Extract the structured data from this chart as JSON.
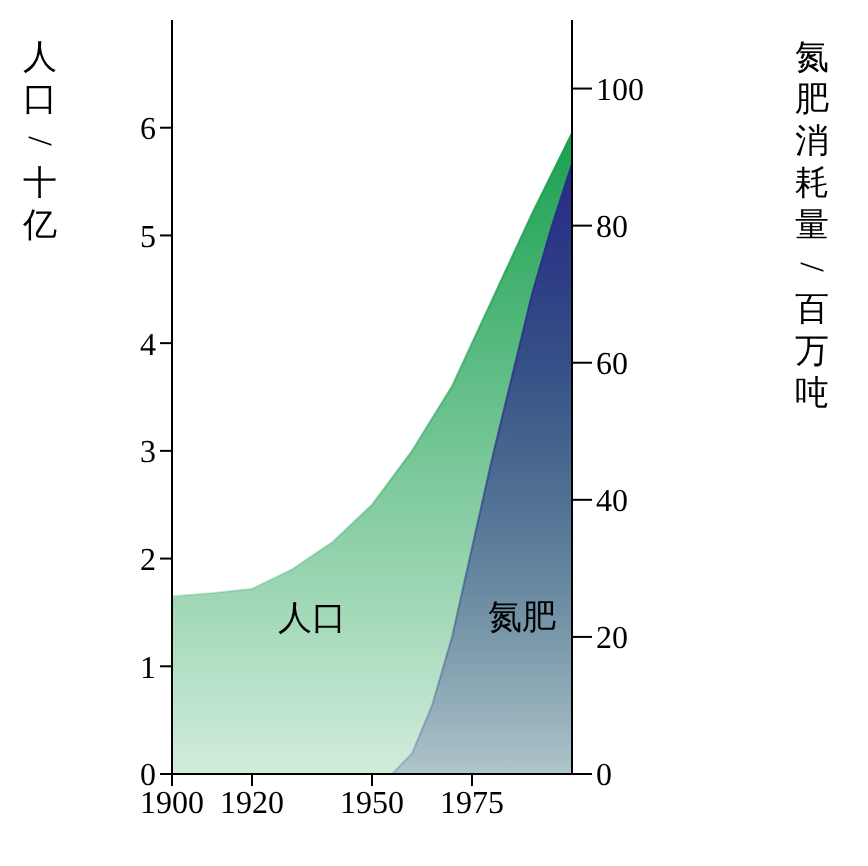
{
  "chart_data": {
    "type": "area",
    "ylabel": "人口/十亿",
    "y2label": "氮肥消耗量/百万吨",
    "xlim": [
      1900,
      2000
    ],
    "xticks": [
      1900,
      1920,
      1950,
      1975
    ],
    "ylim": [
      0,
      7
    ],
    "yticks": [
      0,
      1,
      2,
      3,
      4,
      5,
      6
    ],
    "y2lim": [
      0,
      110
    ],
    "y2ticks": [
      0,
      20,
      40,
      60,
      80,
      100
    ],
    "grid": false,
    "legend": false,
    "series": [
      {
        "name": "人口",
        "color": "#1aa050",
        "x": [
          1900,
          1910,
          1920,
          1930,
          1940,
          1950,
          1960,
          1970,
          1975,
          1980,
          1990,
          2000
        ],
        "values": [
          1.65,
          1.68,
          1.72,
          1.9,
          2.15,
          2.5,
          3.0,
          3.6,
          4.0,
          4.4,
          5.2,
          5.95
        ]
      },
      {
        "name": "氮肥",
        "color": "#2a2a8a",
        "axis": "y2",
        "x": [
          1955,
          1960,
          1965,
          1970,
          1975,
          1980,
          1985,
          1990,
          1995,
          2000
        ],
        "values": [
          0,
          3,
          10,
          20,
          33,
          46,
          58,
          70,
          80,
          89
        ]
      }
    ]
  }
}
